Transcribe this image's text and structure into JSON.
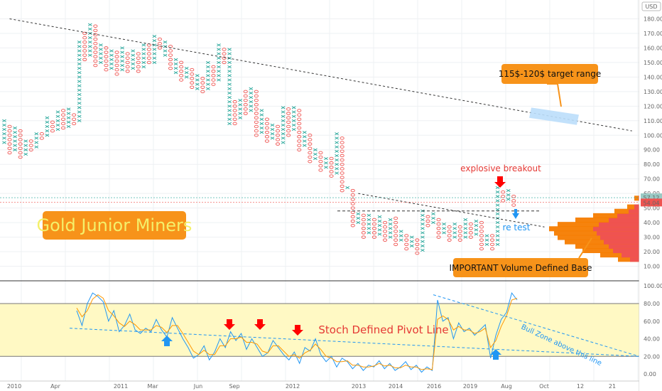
{
  "chart_data": [
    {
      "type": "point-and-figure",
      "title": "Gold Junior Miners",
      "currency": "USD",
      "y_ticks": [
        "180.00",
        "170.00",
        "160.00",
        "150.00",
        "140.00",
        "130.00",
        "120.00",
        "110.00",
        "100.00",
        "90.00",
        "80.00",
        "70.00",
        "60.00",
        "50.00",
        "40.00",
        "30.00",
        "20.00",
        "10.00"
      ],
      "ylim": [
        0,
        190
      ],
      "x_ticks": [
        "2010",
        "Apr",
        "2011",
        "Mar",
        "Jun",
        "Sep",
        "2012",
        "2013",
        "2014",
        "2016",
        "2019",
        "Aug",
        "Oct",
        "12",
        "21"
      ],
      "price_labels": [
        "57.12",
        "54.04"
      ],
      "columns": [
        {
          "t": "x",
          "lo": 95,
          "hi": 110
        },
        {
          "t": "o",
          "lo": 88,
          "hi": 108
        },
        {
          "t": "x",
          "lo": 90,
          "hi": 105
        },
        {
          "t": "o",
          "lo": 85,
          "hi": 103
        },
        {
          "t": "x",
          "lo": 87,
          "hi": 97
        },
        {
          "t": "o",
          "lo": 90,
          "hi": 96
        },
        {
          "t": "x",
          "lo": 92,
          "hi": 103
        },
        {
          "t": "o",
          "lo": 98,
          "hi": 103
        },
        {
          "t": "x",
          "lo": 100,
          "hi": 112
        },
        {
          "t": "o",
          "lo": 103,
          "hi": 110
        },
        {
          "t": "x",
          "lo": 104,
          "hi": 118
        },
        {
          "t": "o",
          "lo": 105,
          "hi": 117
        },
        {
          "t": "x",
          "lo": 106,
          "hi": 118
        },
        {
          "t": "o",
          "lo": 108,
          "hi": 116
        },
        {
          "t": "x",
          "lo": 110,
          "hi": 165
        },
        {
          "t": "o",
          "lo": 152,
          "hi": 170
        },
        {
          "t": "x",
          "lo": 155,
          "hi": 178
        },
        {
          "t": "o",
          "lo": 148,
          "hi": 175
        },
        {
          "t": "x",
          "lo": 150,
          "hi": 162
        },
        {
          "t": "o",
          "lo": 145,
          "hi": 160
        },
        {
          "t": "x",
          "lo": 146,
          "hi": 158
        },
        {
          "t": "o",
          "lo": 142,
          "hi": 157
        },
        {
          "t": "x",
          "lo": 145,
          "hi": 160
        },
        {
          "t": "o",
          "lo": 144,
          "hi": 158
        },
        {
          "t": "x",
          "lo": 146,
          "hi": 160
        },
        {
          "t": "o",
          "lo": 144,
          "hi": 158
        },
        {
          "t": "x",
          "lo": 147,
          "hi": 164
        },
        {
          "t": "o",
          "lo": 150,
          "hi": 162
        },
        {
          "t": "x",
          "lo": 150,
          "hi": 170
        },
        {
          "t": "o",
          "lo": 160,
          "hi": 168
        },
        {
          "t": "x",
          "lo": 155,
          "hi": 166
        },
        {
          "t": "o",
          "lo": 146,
          "hi": 163
        },
        {
          "t": "x",
          "lo": 143,
          "hi": 152
        },
        {
          "t": "o",
          "lo": 138,
          "hi": 150
        },
        {
          "t": "x",
          "lo": 140,
          "hi": 148
        },
        {
          "t": "o",
          "lo": 133,
          "hi": 146
        },
        {
          "t": "x",
          "lo": 132,
          "hi": 142
        },
        {
          "t": "o",
          "lo": 130,
          "hi": 140
        },
        {
          "t": "x",
          "lo": 132,
          "hi": 150
        },
        {
          "t": "o",
          "lo": 135,
          "hi": 148
        },
        {
          "t": "x",
          "lo": 138,
          "hi": 162
        },
        {
          "t": "o",
          "lo": 150,
          "hi": 160
        },
        {
          "t": "x",
          "lo": 108,
          "hi": 160
        },
        {
          "t": "o",
          "lo": 108,
          "hi": 125
        },
        {
          "t": "x",
          "lo": 112,
          "hi": 125
        },
        {
          "t": "o",
          "lo": 115,
          "hi": 130
        },
        {
          "t": "x",
          "lo": 117,
          "hi": 132
        },
        {
          "t": "o",
          "lo": 100,
          "hi": 130
        },
        {
          "t": "x",
          "lo": 102,
          "hi": 118
        },
        {
          "t": "o",
          "lo": 96,
          "hi": 112
        },
        {
          "t": "x",
          "lo": 98,
          "hi": 108
        },
        {
          "t": "o",
          "lo": 94,
          "hi": 106
        },
        {
          "t": "x",
          "lo": 95,
          "hi": 120
        },
        {
          "t": "o",
          "lo": 100,
          "hi": 118
        },
        {
          "t": "x",
          "lo": 104,
          "hi": 120
        },
        {
          "t": "o",
          "lo": 90,
          "hi": 118
        },
        {
          "t": "x",
          "lo": 93,
          "hi": 103
        },
        {
          "t": "o",
          "lo": 82,
          "hi": 100
        },
        {
          "t": "x",
          "lo": 84,
          "hi": 92
        },
        {
          "t": "o",
          "lo": 76,
          "hi": 90
        },
        {
          "t": "x",
          "lo": 78,
          "hi": 86
        },
        {
          "t": "o",
          "lo": 72,
          "hi": 84
        },
        {
          "t": "x",
          "lo": 74,
          "hi": 101
        },
        {
          "t": "o",
          "lo": 62,
          "hi": 99
        },
        {
          "t": "x",
          "lo": 64,
          "hi": 66
        },
        {
          "t": "o",
          "lo": 38,
          "hi": 63
        },
        {
          "t": "x",
          "lo": 40,
          "hi": 48
        },
        {
          "t": "o",
          "lo": 30,
          "hi": 46
        },
        {
          "t": "x",
          "lo": 33,
          "hi": 45
        },
        {
          "t": "o",
          "lo": 30,
          "hi": 43
        },
        {
          "t": "x",
          "lo": 32,
          "hi": 44
        },
        {
          "t": "o",
          "lo": 28,
          "hi": 42
        },
        {
          "t": "x",
          "lo": 30,
          "hi": 44
        },
        {
          "t": "o",
          "lo": 25,
          "hi": 43
        },
        {
          "t": "x",
          "lo": 28,
          "hi": 35
        },
        {
          "t": "o",
          "lo": 22,
          "hi": 33
        },
        {
          "t": "x",
          "lo": 24,
          "hi": 30
        },
        {
          "t": "o",
          "lo": 19,
          "hi": 29
        },
        {
          "t": "x",
          "lo": 21,
          "hi": 48
        },
        {
          "t": "o",
          "lo": 38,
          "hi": 46
        },
        {
          "t": "x",
          "lo": 40,
          "hi": 46
        },
        {
          "t": "o",
          "lo": 30,
          "hi": 44
        },
        {
          "t": "x",
          "lo": 33,
          "hi": 39
        },
        {
          "t": "o",
          "lo": 28,
          "hi": 38
        },
        {
          "t": "x",
          "lo": 30,
          "hi": 40
        },
        {
          "t": "o",
          "lo": 28,
          "hi": 38
        },
        {
          "t": "x",
          "lo": 30,
          "hi": 42
        },
        {
          "t": "o",
          "lo": 30,
          "hi": 40
        },
        {
          "t": "x",
          "lo": 32,
          "hi": 42
        },
        {
          "t": "o",
          "lo": 22,
          "hi": 40
        },
        {
          "t": "x",
          "lo": 25,
          "hi": 33
        },
        {
          "t": "o",
          "lo": 22,
          "hi": 31
        },
        {
          "t": "x",
          "lo": 25,
          "hi": 65
        },
        {
          "t": "o",
          "lo": 55,
          "hi": 63
        },
        {
          "t": "x",
          "lo": 56,
          "hi": 62
        },
        {
          "t": "o",
          "lo": 52,
          "hi": 60
        }
      ],
      "trendlines_y": {
        "main_down": {
          "from": [
            1,
            180
          ],
          "to": [
            125,
            103
          ]
        },
        "breakout_down": {
          "from": [
            66,
            60
          ],
          "to": [
            110,
            37
          ]
        },
        "neckline": 48
      },
      "target_zone": {
        "label": "115$-120$ target range",
        "lo": 112,
        "hi": 120
      },
      "annotations": {
        "breakout": "explosive breakout",
        "retest": "re test",
        "base": "IMPORTANT Volume Defined Base"
      },
      "volume_profile": [
        {
          "y": 15,
          "total": 35,
          "up": 18
        },
        {
          "y": 18,
          "total": 60,
          "up": 30
        },
        {
          "y": 21,
          "total": 85,
          "up": 42
        },
        {
          "y": 24,
          "total": 95,
          "up": 48
        },
        {
          "y": 27,
          "total": 110,
          "up": 55
        },
        {
          "y": 30,
          "total": 120,
          "up": 60
        },
        {
          "y": 33,
          "total": 125,
          "up": 65
        },
        {
          "y": 36,
          "total": 132,
          "up": 70
        },
        {
          "y": 39,
          "total": 120,
          "up": 62
        },
        {
          "y": 42,
          "total": 95,
          "up": 48
        },
        {
          "y": 45,
          "total": 70,
          "up": 36
        },
        {
          "y": 48,
          "total": 40,
          "up": 20
        },
        {
          "y": 51,
          "total": 22,
          "up": 12
        },
        {
          "y": 57,
          "total": 12,
          "up": 6
        }
      ]
    },
    {
      "type": "line",
      "title": "Stoch Defined Pivot Line",
      "y_ticks": [
        "100.00",
        "80.00",
        "60.00",
        "40.00",
        "20.00",
        "0.00"
      ],
      "ylim": [
        -8,
        105
      ],
      "band": [
        20,
        80
      ],
      "series": [
        {
          "color": "#2196f3",
          "values": [
            72,
            55,
            80,
            92,
            88,
            82,
            60,
            72,
            48,
            55,
            68,
            50,
            46,
            52,
            48,
            62,
            50,
            42,
            64,
            52,
            40,
            30,
            18,
            22,
            32,
            16,
            25,
            40,
            30,
            48,
            38,
            46,
            28,
            40,
            30,
            20,
            24,
            38,
            30,
            22,
            16,
            25,
            12,
            30,
            26,
            40,
            22,
            14,
            20,
            8,
            18,
            14,
            6,
            12,
            4,
            10,
            8,
            15,
            6,
            12,
            4,
            8,
            14,
            5,
            10,
            2,
            8,
            4,
            84,
            60,
            64,
            40,
            58,
            48,
            52,
            44,
            50,
            56,
            18,
            44,
            62,
            70,
            92,
            84
          ]
        },
        {
          "color": "#ff9800",
          "values": [
            75,
            65,
            72,
            85,
            90,
            86,
            72,
            66,
            58,
            54,
            60,
            56,
            50,
            50,
            50,
            55,
            53,
            47,
            55,
            55,
            46,
            36,
            26,
            22,
            27,
            22,
            22,
            32,
            32,
            40,
            40,
            42,
            36,
            36,
            34,
            26,
            24,
            32,
            32,
            26,
            20,
            22,
            18,
            24,
            27,
            34,
            28,
            20,
            18,
            14,
            14,
            15,
            10,
            10,
            8,
            8,
            9,
            12,
            9,
            10,
            7,
            7,
            10,
            8,
            8,
            5,
            6,
            5,
            62,
            66,
            62,
            50,
            54,
            50,
            50,
            46,
            48,
            52,
            30,
            38,
            54,
            66,
            84,
            86
          ]
        }
      ],
      "annotations": {
        "bull_zone": "Bull Zone above this line"
      }
    }
  ],
  "colors": {
    "x_col": "#26a69a",
    "o_col": "#ef5350",
    "title_bg": "#f7931a",
    "title_fg": "#f4f06a",
    "annotation_bg": "#f7931a",
    "up_arrow": "#2196f3",
    "down_arrow": "#ff0000",
    "target_zone": "#bbdefb",
    "band": "#fff9c4",
    "grid": "#eef0f3"
  }
}
